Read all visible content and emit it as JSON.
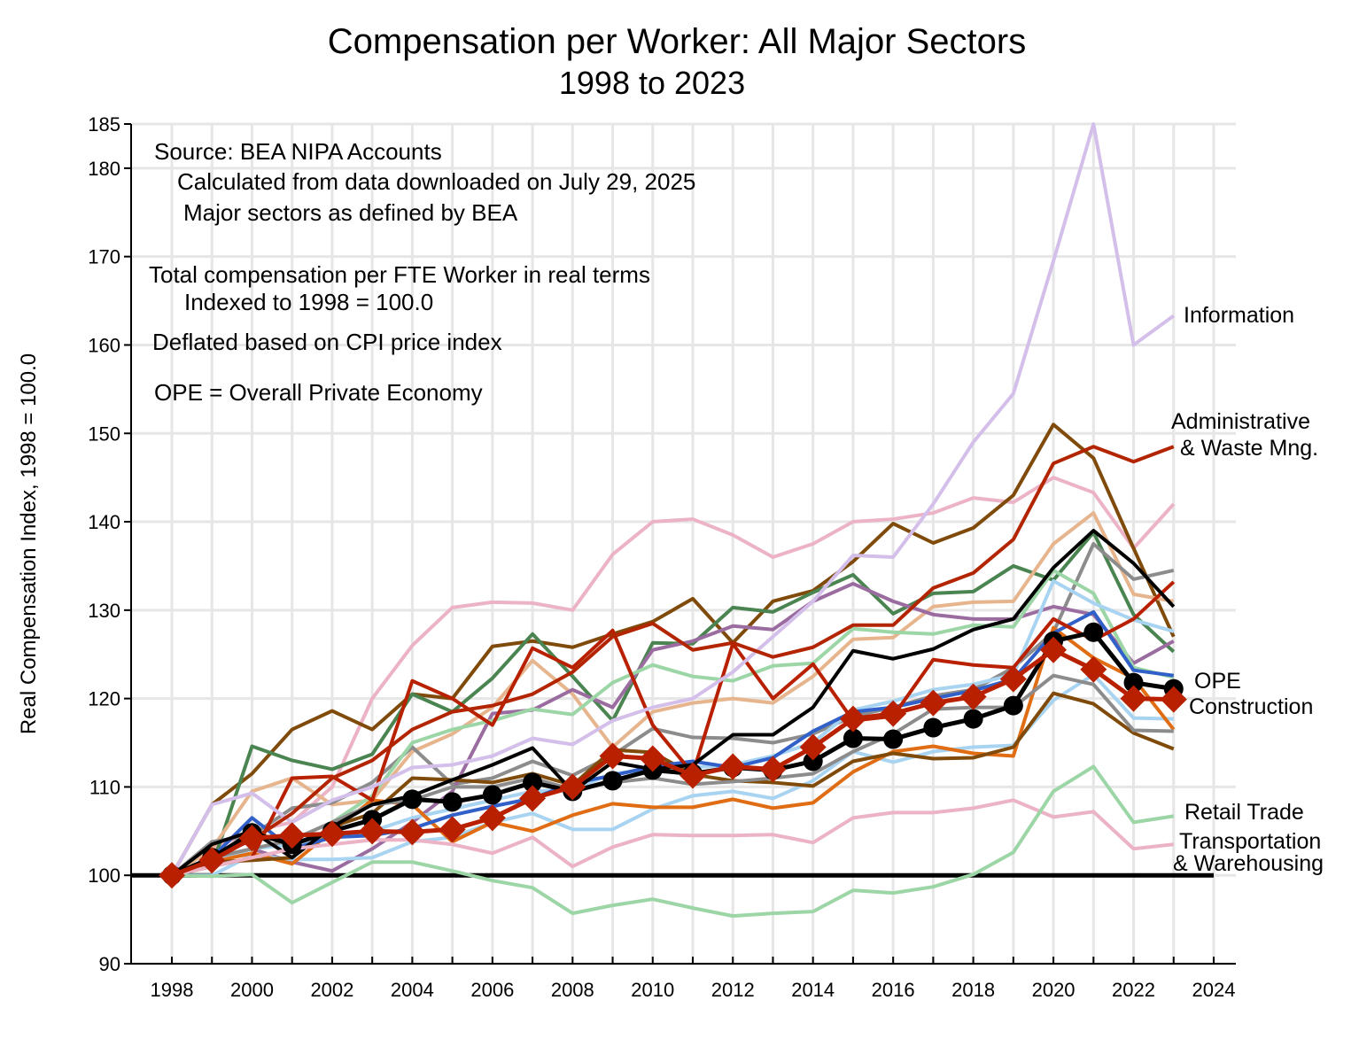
{
  "chart_data": {
    "type": "line",
    "title": "Compensation per Worker:  All Major Sectors",
    "subtitle": "1998 to 2023",
    "ylabel": "Real Compensation Index, 1998 = 100.0",
    "xlabel": "",
    "xlim": [
      1998,
      2024
    ],
    "ylim": [
      90,
      185
    ],
    "grid": true,
    "x_ticks": [
      "1998",
      "2000",
      "2002",
      "2004",
      "2006",
      "2008",
      "2010",
      "2012",
      "2014",
      "2016",
      "2018",
      "2020",
      "2022",
      "2024"
    ],
    "y_ticks": [
      "90",
      "100",
      "110",
      "120",
      "130",
      "140",
      "150",
      "160",
      "170",
      "180",
      "185"
    ],
    "baseline": 100,
    "annotations": [
      "Source:  BEA NIPA Accounts",
      "Calculated from data downloaded on July 29, 2025",
      "Major sectors as defined by BEA",
      "Total compensation per FTE Worker in real terms",
      "Indexed to 1998 = 100.0",
      "Deflated based on CPI price index",
      "OPE = Overall Private Economy"
    ],
    "x": [
      1998,
      1999,
      2000,
      2001,
      2002,
      2003,
      2004,
      2005,
      2006,
      2007,
      2008,
      2009,
      2010,
      2011,
      2012,
      2013,
      2014,
      2015,
      2016,
      2017,
      2018,
      2019,
      2020,
      2021,
      2022,
      2023
    ],
    "series": [
      {
        "color": "#ecb3c6",
        "values": [
          100,
          103,
          105,
          106,
          110,
          120,
          126,
          130.3,
          130.9,
          130.8,
          130,
          136.3,
          140,
          140.3,
          138.5,
          136,
          137.5,
          140,
          140.3,
          141,
          142.7,
          142.2,
          145,
          143.3,
          137,
          142
        ]
      },
      {
        "color": "#7f4a0a",
        "values": [
          100,
          108,
          111.5,
          116.5,
          118.6,
          116.5,
          120.5,
          120,
          125.9,
          126.5,
          125.8,
          127.3,
          128.7,
          131.3,
          126.3,
          131,
          132.2,
          135.5,
          139.8,
          137.6,
          139.3,
          143,
          151,
          147.2,
          137,
          127
        ]
      },
      {
        "color": "#4a8450",
        "values": [
          100,
          101,
          114.6,
          113,
          112,
          113.7,
          120.5,
          118.5,
          122.3,
          127.3,
          122.5,
          117.5,
          126.3,
          126.2,
          130.3,
          129.8,
          132,
          134,
          129.6,
          131.9,
          132.1,
          135,
          133.4,
          138.8,
          129.5,
          125.3
        ]
      },
      {
        "color": "#e6b58e",
        "values": [
          100,
          103,
          109.5,
          111,
          108,
          108.5,
          114,
          116,
          119,
          124.3,
          120.5,
          114.5,
          118.5,
          119.5,
          120,
          119.5,
          122.5,
          126.7,
          126.9,
          130.4,
          130.9,
          131,
          137.5,
          141,
          131.8,
          131
        ]
      },
      {
        "color": "#8c8c8c",
        "values": [
          100,
          103.8,
          104.5,
          107.6,
          108.2,
          110.5,
          114.5,
          110.3,
          111,
          112.9,
          111.3,
          113.6,
          116.6,
          115.6,
          115.5,
          115,
          116,
          118,
          119,
          120.3,
          121,
          123.5,
          127.5,
          137.5,
          133.5,
          134.5
        ]
      },
      {
        "color": "#9b6ca0",
        "values": [
          100,
          102,
          103,
          101.5,
          100.5,
          103,
          106,
          109.5,
          118.3,
          118.7,
          121,
          119,
          125.5,
          126.5,
          128.2,
          127.8,
          131,
          133,
          131,
          129.5,
          129,
          129,
          130.4,
          129.5,
          124,
          126.5
        ]
      },
      {
        "color": "#9dd6a6",
        "values": [
          100,
          102,
          103,
          104,
          106,
          109,
          115,
          116.5,
          117.5,
          118.8,
          118.2,
          121.8,
          123.8,
          122.5,
          122,
          123.7,
          124,
          127.9,
          127.5,
          127.3,
          128.3,
          128.1,
          134.5,
          131.9,
          123.5,
          122.4
        ]
      },
      {
        "color": "#a8d4f2",
        "values": [
          100,
          100,
          102.3,
          101.8,
          101.8,
          102,
          103.8,
          104.3,
          106,
          107,
          105.2,
          105.2,
          107.5,
          109,
          109.5,
          108.7,
          110.7,
          114,
          112.8,
          114,
          114.5,
          114.7,
          119.8,
          122.7,
          117.8,
          117.7
        ]
      },
      {
        "color": "#a8d4f2",
        "values": [
          100,
          101.5,
          103,
          103.5,
          104.5,
          105,
          106.5,
          107.5,
          108.5,
          109.5,
          109.7,
          111.5,
          112,
          112.2,
          112.5,
          113.5,
          115,
          118.7,
          119.7,
          121,
          121.6,
          122.7,
          133.3,
          130.8,
          128.9,
          127.6
        ]
      },
      {
        "color": "#e06c14",
        "values": [
          100,
          101.5,
          102.5,
          101.3,
          105,
          108.5,
          108,
          103.8,
          106,
          105,
          106.8,
          108.1,
          107.7,
          107.7,
          108.6,
          107.6,
          108.2,
          111.7,
          114,
          114.6,
          113.8,
          113.5,
          128,
          124.6,
          122.3,
          116.5
        ]
      },
      {
        "color": "#7f4a0a",
        "values": [
          100,
          101.5,
          101.7,
          102,
          105.5,
          107,
          111,
          110.8,
          110.5,
          111.5,
          110.2,
          114.2,
          113.9,
          111.4,
          110.7,
          110.5,
          110.1,
          112.9,
          113.8,
          113.2,
          113.3,
          114.5,
          120.6,
          119.4,
          116.1,
          114.3
        ]
      },
      {
        "color": "#8c8c8c",
        "values": [
          100,
          102,
          103,
          104,
          106,
          108,
          108.5,
          110,
          110,
          111,
          109.7,
          110.5,
          111,
          110.3,
          110.6,
          111,
          111.5,
          114,
          116,
          118.8,
          119,
          119,
          122.6,
          121.6,
          116.4,
          116.3
        ]
      },
      {
        "color": "#3060c8",
        "values": [
          100,
          102,
          106.5,
          103,
          104.3,
          104.5,
          105.3,
          106.8,
          107.8,
          108.7,
          110.4,
          111.3,
          112.3,
          112.9,
          112.2,
          113.3,
          116.3,
          118.5,
          119,
          120,
          120.9,
          122.2,
          127.4,
          129.8,
          123.2,
          122.6
        ]
      },
      {
        "color": "#b82000",
        "values": [
          100,
          101,
          102,
          111,
          111.2,
          108.5,
          122,
          120,
          117,
          125.7,
          123.5,
          127.7,
          117,
          111.5,
          126.2,
          120,
          123.9,
          117.5,
          118,
          124.4,
          123.8,
          123.5,
          129,
          126.6,
          129,
          133.2
        ]
      },
      {
        "color": "#000000",
        "values": [
          100,
          103.5,
          105,
          102,
          105.5,
          108,
          109,
          110.8,
          112.5,
          114.4,
          109.5,
          112.8,
          112,
          112.5,
          115.9,
          115.9,
          119,
          125.4,
          124.5,
          125.6,
          127.8,
          129,
          134.8,
          139,
          135.3,
          130.4
        ]
      },
      {
        "name": "Transportation\n& Warehousing",
        "color": "#ecb3c6",
        "values": [
          100,
          101,
          102,
          103,
          103.5,
          104,
          104,
          103.5,
          102.5,
          104.3,
          101,
          103.2,
          104.6,
          104.5,
          104.5,
          104.6,
          103.7,
          106.5,
          107.1,
          107.1,
          107.6,
          108.5,
          106.6,
          107.2,
          103,
          103.5
        ]
      },
      {
        "name": "Retail Trade",
        "color": "#9dd6a6",
        "values": [
          100,
          99.9,
          100.1,
          96.9,
          99.2,
          101.5,
          101.5,
          100.5,
          99.4,
          98.6,
          95.7,
          96.6,
          97.3,
          96.3,
          95.4,
          95.7,
          95.9,
          98.3,
          98,
          98.7,
          100.1,
          102.6,
          109.5,
          112.3,
          106,
          106.7
        ]
      },
      {
        "name": "Information",
        "color": "#d4bfea",
        "values": [
          100,
          108,
          109.3,
          106,
          108.5,
          110,
          112.2,
          112.5,
          113.5,
          115.5,
          114.8,
          117.5,
          119,
          120,
          123,
          127,
          131,
          136.2,
          136,
          142,
          149,
          154.5,
          169.5,
          185,
          160,
          163.3
        ]
      },
      {
        "name": "Administrative\n& Waste Mng.",
        "color": "#b32400",
        "values": [
          100,
          102,
          104,
          107,
          111,
          113,
          116.5,
          118.5,
          119.2,
          120.5,
          123,
          127,
          128.5,
          125.5,
          126.3,
          124.7,
          125.8,
          128.3,
          128.3,
          132.5,
          134.2,
          138,
          146.6,
          148.5,
          146.8,
          148.5
        ]
      },
      {
        "name": "OPE",
        "color": "#000000",
        "marker": "circle",
        "values": [
          100,
          102,
          104.8,
          103.5,
          105,
          106.3,
          108.6,
          108.3,
          109.1,
          110.5,
          109.5,
          110.7,
          111.9,
          111.5,
          112.2,
          111.9,
          112.9,
          115.5,
          115.4,
          116.7,
          117.7,
          119.2,
          126.5,
          127.5,
          121.8,
          121.1
        ]
      },
      {
        "name": "Construction",
        "color": "#b82000",
        "marker": "diamond",
        "values": [
          100,
          101.7,
          104.2,
          104.5,
          104.7,
          105,
          104.9,
          105.2,
          106.5,
          108.7,
          110,
          113.5,
          113.2,
          111.3,
          112.3,
          112,
          114.5,
          117.7,
          118.3,
          119.5,
          120.2,
          122.2,
          125.5,
          123.3,
          120,
          119.9
        ]
      }
    ]
  }
}
